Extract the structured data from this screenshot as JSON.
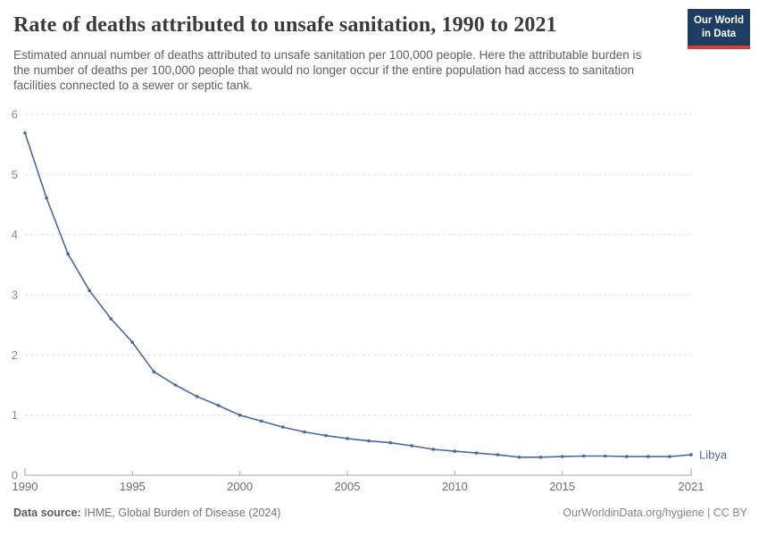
{
  "header": {
    "title": "Rate of deaths attributed to unsafe sanitation, 1990 to 2021",
    "subtitle": "Estimated annual number of deaths attributed to unsafe sanitation per 100,000 people. Here the attributable burden is the number of deaths per 100,000 people that would no longer occur if the entire population had access to sanitation facilities connected to a sewer or septic tank.",
    "logo": {
      "line1": "Our World",
      "line2": "in Data",
      "bg_color": "#1d3d63",
      "accent_color": "#dc3a32"
    }
  },
  "chart_data": {
    "type": "line",
    "title": "Rate of deaths attributed to unsafe sanitation, 1990 to 2021",
    "xlabel": "",
    "ylabel": "",
    "xlim": [
      1990,
      2021
    ],
    "ylim": [
      0,
      6
    ],
    "xticks": [
      1990,
      1995,
      2000,
      2005,
      2010,
      2015,
      2021
    ],
    "yticks": [
      0,
      1,
      2,
      3,
      4,
      5,
      6
    ],
    "grid": "horizontal-dashed",
    "legend_position": "end-of-line",
    "years": [
      1990,
      1991,
      1992,
      1993,
      1994,
      1995,
      1996,
      1997,
      1998,
      1999,
      2000,
      2001,
      2002,
      2003,
      2004,
      2005,
      2006,
      2007,
      2008,
      2009,
      2010,
      2011,
      2012,
      2013,
      2014,
      2015,
      2016,
      2017,
      2018,
      2019,
      2020,
      2021
    ],
    "series": [
      {
        "name": "Libya",
        "color": "#4668a8",
        "values": [
          5.69,
          4.61,
          3.68,
          3.07,
          2.6,
          2.21,
          1.72,
          1.5,
          1.31,
          1.16,
          1.0,
          0.9,
          0.8,
          0.72,
          0.66,
          0.61,
          0.57,
          0.54,
          0.49,
          0.43,
          0.4,
          0.37,
          0.34,
          0.3,
          0.3,
          0.31,
          0.32,
          0.32,
          0.31,
          0.31,
          0.31,
          0.34
        ]
      }
    ],
    "colors": {
      "grid": "#dddddd",
      "axis": "#a6a6a6",
      "x_tick_label": "#6e6e6e",
      "y_tick_label": "#8c8c8c"
    }
  },
  "footer": {
    "source_label": "Data source:",
    "source_value": "IHME, Global Burden of Disease (2024)",
    "right": "OurWorldinData.org/hygiene | CC BY"
  }
}
